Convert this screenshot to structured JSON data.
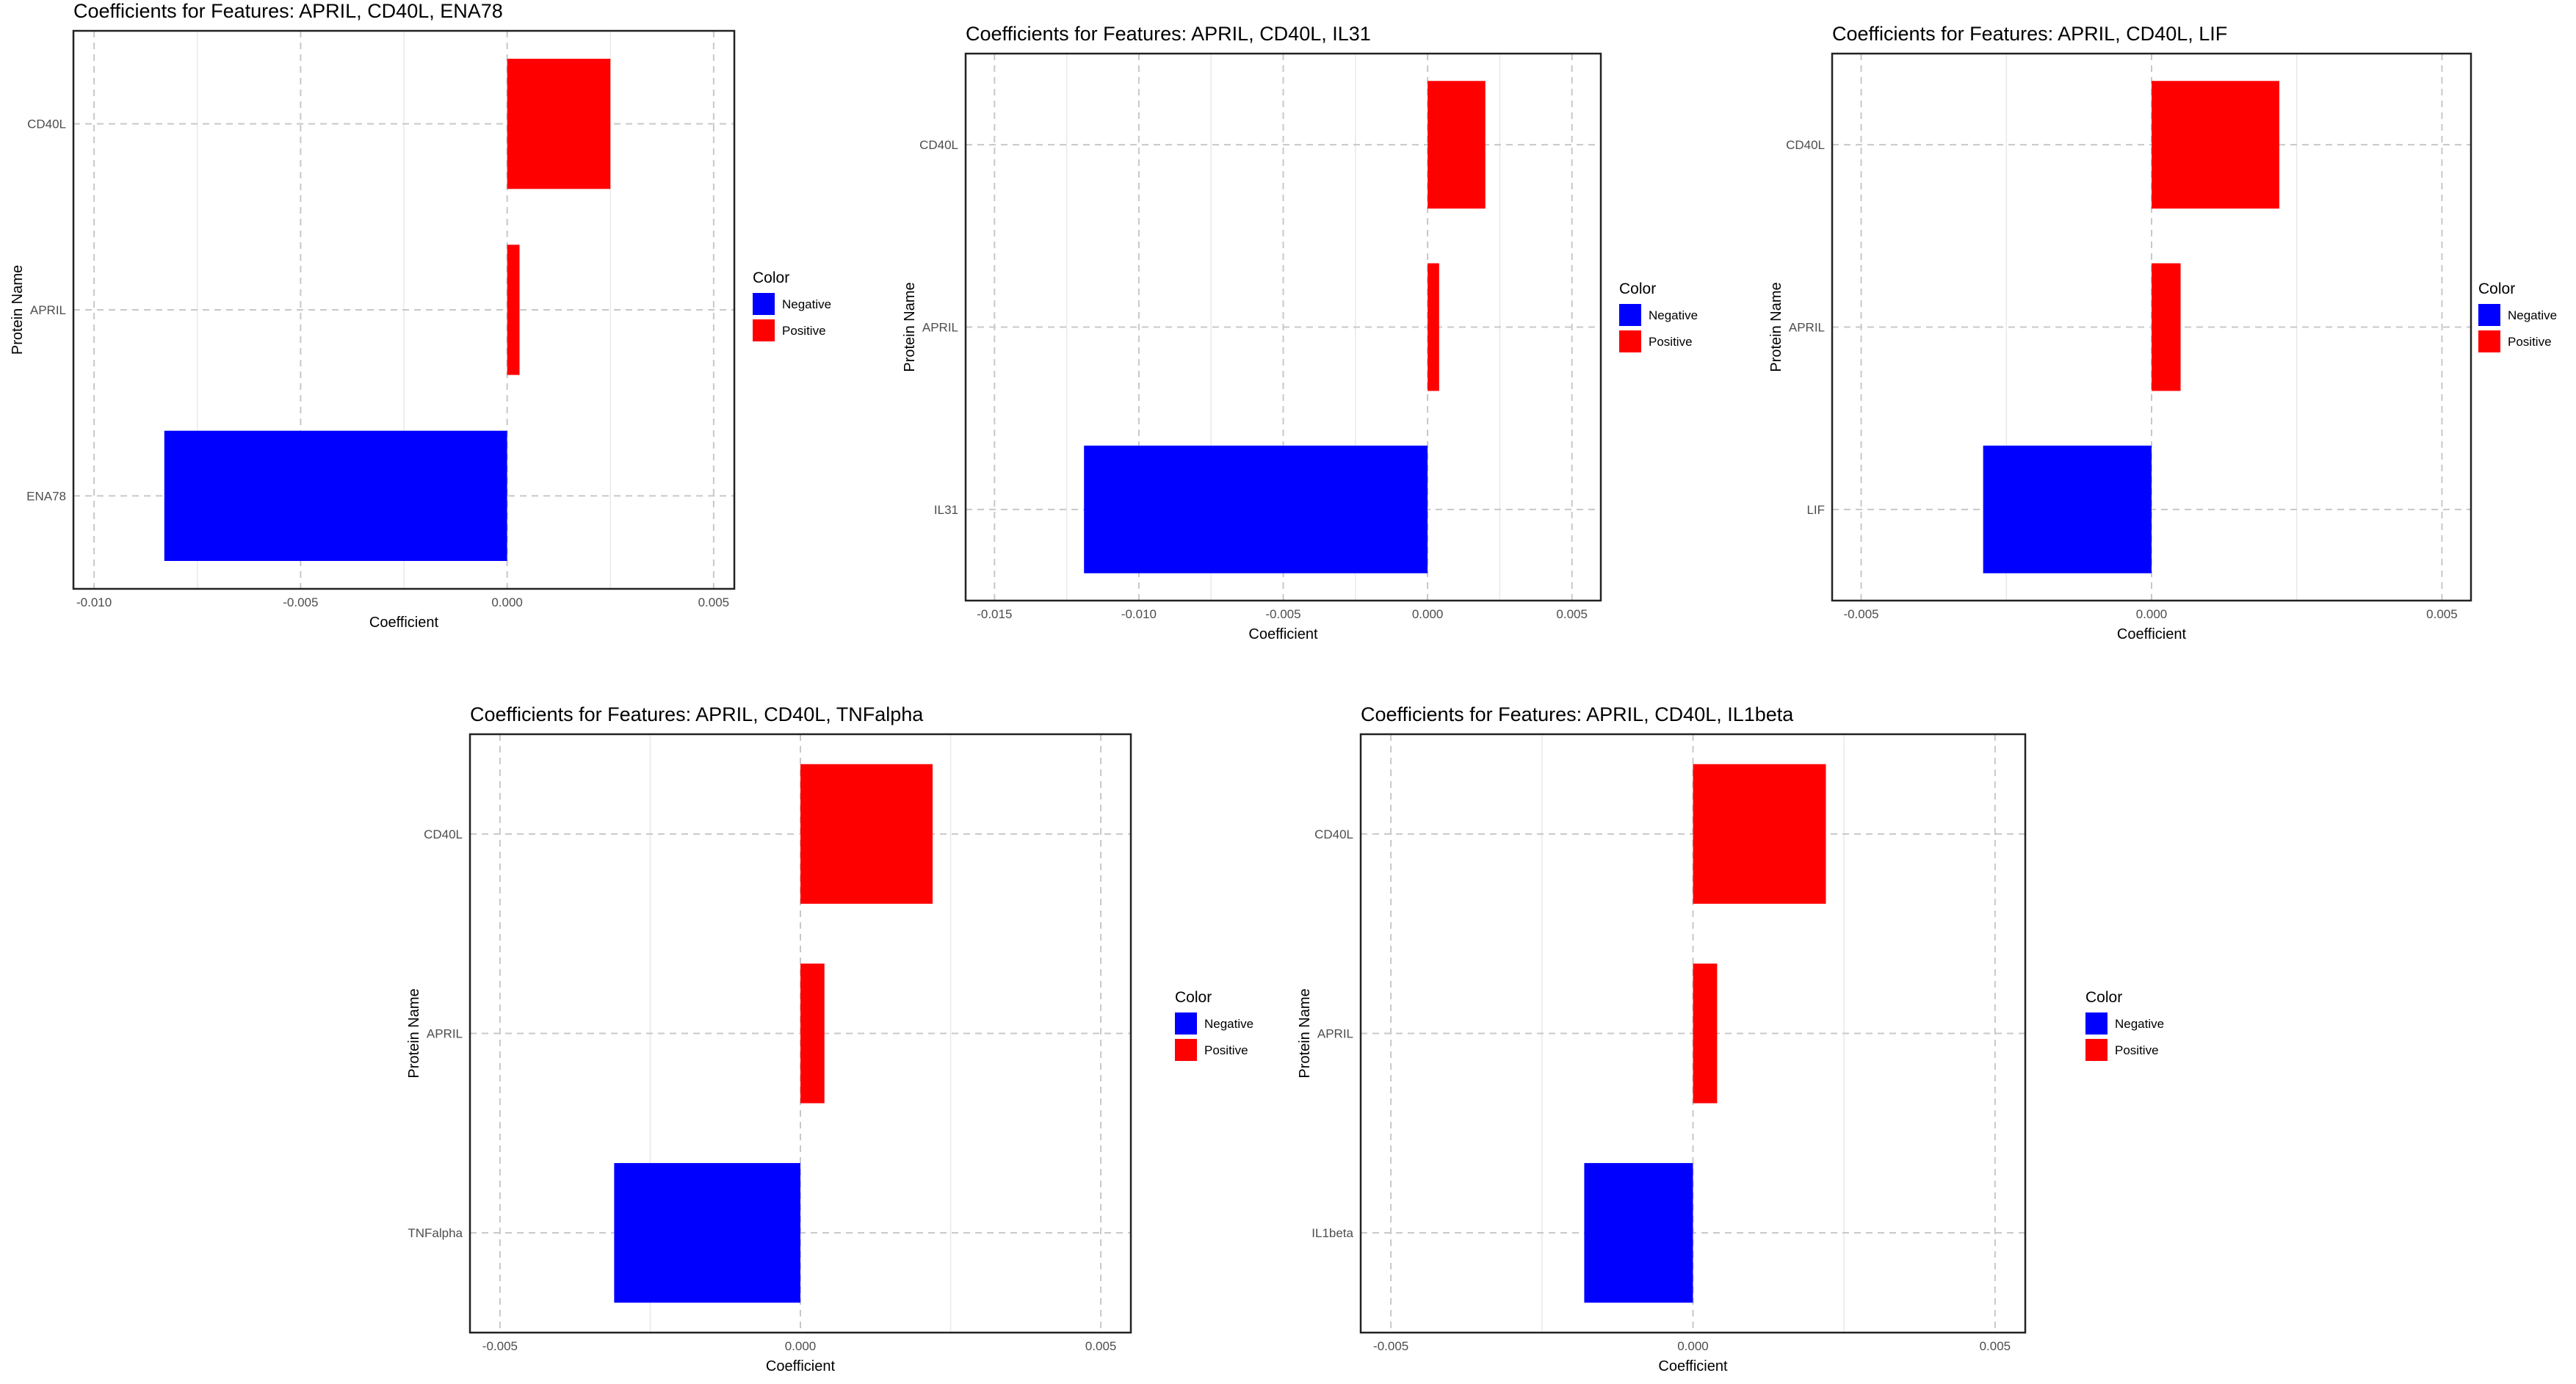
{
  "legend": {
    "title": "Color",
    "items": [
      {
        "label": "Negative",
        "color": "#0000ff"
      },
      {
        "label": "Positive",
        "color": "#ff0000"
      }
    ]
  },
  "chart_data": [
    {
      "type": "bar",
      "orientation": "horizontal",
      "title": "Coefficients for Features: APRIL, CD40L, ENA78",
      "xlabel": "Coefficient",
      "ylabel": "Protein Name",
      "categories": [
        "CD40L",
        "APRIL",
        "ENA78"
      ],
      "values": [
        0.0025,
        0.0003,
        -0.0083
      ],
      "signs": [
        "Positive",
        "Positive",
        "Negative"
      ],
      "xlim": [
        -0.0105,
        0.0055
      ],
      "xticks": [
        -0.01,
        -0.005,
        0.0,
        0.005
      ],
      "xtick_labels": [
        "-0.010",
        "-0.005",
        "0.000",
        "0.005"
      ],
      "grid": true,
      "legend_position": "right"
    },
    {
      "type": "bar",
      "orientation": "horizontal",
      "title": "Coefficients for Features: APRIL, CD40L, IL31",
      "xlabel": "Coefficient",
      "ylabel": "Protein Name",
      "categories": [
        "CD40L",
        "APRIL",
        "IL31"
      ],
      "values": [
        0.002,
        0.0004,
        -0.0119
      ],
      "signs": [
        "Positive",
        "Positive",
        "Negative"
      ],
      "xlim": [
        -0.016,
        0.006
      ],
      "xticks": [
        -0.015,
        -0.01,
        -0.005,
        0.0,
        0.005
      ],
      "xtick_labels": [
        "-0.015",
        "-0.010",
        "-0.005",
        "0.000",
        "0.005"
      ],
      "grid": true,
      "legend_position": "right"
    },
    {
      "type": "bar",
      "orientation": "horizontal",
      "title": "Coefficients for Features: APRIL, CD40L, LIF",
      "xlabel": "Coefficient",
      "ylabel": "Protein Name",
      "categories": [
        "CD40L",
        "APRIL",
        "LIF"
      ],
      "values": [
        0.0022,
        0.0005,
        -0.0029
      ],
      "signs": [
        "Positive",
        "Positive",
        "Negative"
      ],
      "xlim": [
        -0.0055,
        0.0055
      ],
      "xticks": [
        -0.005,
        0.0,
        0.005
      ],
      "xtick_labels": [
        "-0.005",
        "0.000",
        "0.005"
      ],
      "grid": true,
      "legend_position": "right"
    },
    {
      "type": "bar",
      "orientation": "horizontal",
      "title": "Coefficients for Features: APRIL, CD40L, TNFalpha",
      "xlabel": "Coefficient",
      "ylabel": "Protein Name",
      "categories": [
        "CD40L",
        "APRIL",
        "TNFalpha"
      ],
      "values": [
        0.0022,
        0.0004,
        -0.0031
      ],
      "signs": [
        "Positive",
        "Positive",
        "Negative"
      ],
      "xlim": [
        -0.0055,
        0.0055
      ],
      "xticks": [
        -0.005,
        0.0,
        0.005
      ],
      "xtick_labels": [
        "-0.005",
        "0.000",
        "0.005"
      ],
      "grid": true,
      "legend_position": "right"
    },
    {
      "type": "bar",
      "orientation": "horizontal",
      "title": "Coefficients for Features: APRIL, CD40L, IL1beta",
      "xlabel": "Coefficient",
      "ylabel": "Protein Name",
      "categories": [
        "CD40L",
        "APRIL",
        "IL1beta"
      ],
      "values": [
        0.0022,
        0.0004,
        -0.0018
      ],
      "signs": [
        "Positive",
        "Positive",
        "Negative"
      ],
      "xlim": [
        -0.0055,
        0.0055
      ],
      "xticks": [
        -0.005,
        0.0,
        0.005
      ],
      "xtick_labels": [
        "-0.005",
        "0.000",
        "0.005"
      ],
      "grid": true,
      "legend_position": "right"
    }
  ]
}
